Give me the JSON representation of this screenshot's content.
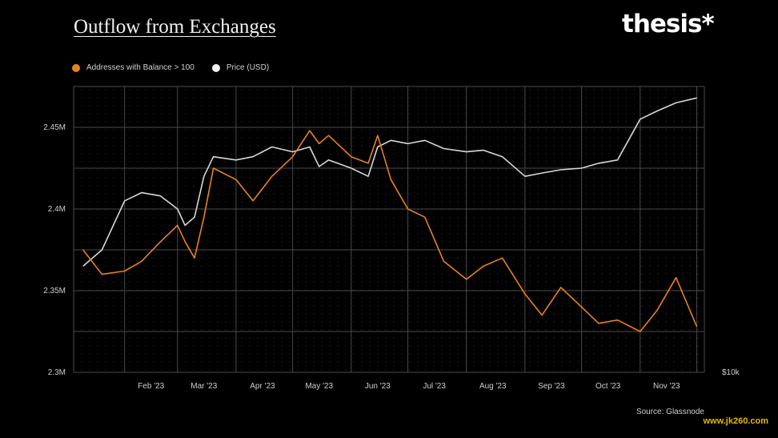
{
  "header": {
    "title": "Outflow from Exchanges",
    "logo_text": "thesis*"
  },
  "legend": [
    {
      "label": "Addresses with Balance > 100",
      "color": "#e8821e"
    },
    {
      "label": "Price (USD)",
      "color": "#e0e0e0"
    }
  ],
  "footer": {
    "source": "Source: Glassnode",
    "watermark": "www.jk260.com"
  },
  "colors": {
    "background": "#000000",
    "grid": "#4a4a4a",
    "addresses": "#e8821e",
    "price": "#d8d8d8"
  },
  "chart_data": {
    "type": "line",
    "title": "Outflow from Exchanges",
    "xlabel": "",
    "ylabel": "",
    "x_ticks": [
      "Feb '23",
      "Mar '23",
      "Apr '23",
      "May '23",
      "Jun '23",
      "Jul '23",
      "Aug '23",
      "Sep '23",
      "Oct '23",
      "Nov '23"
    ],
    "y_ticks": [
      "2.3M",
      "2.35M",
      "2.4M",
      "2.45M"
    ],
    "ylim": [
      2300000,
      2475000
    ],
    "right_axis_label": "$10k",
    "x": [
      "2023-01-10",
      "2023-01-20",
      "2023-02-01",
      "2023-02-10",
      "2023-02-20",
      "2023-03-01",
      "2023-03-05",
      "2023-03-10",
      "2023-03-15",
      "2023-03-20",
      "2023-04-01",
      "2023-04-10",
      "2023-04-20",
      "2023-05-01",
      "2023-05-10",
      "2023-05-15",
      "2023-05-20",
      "2023-06-01",
      "2023-06-10",
      "2023-06-15",
      "2023-06-22",
      "2023-07-01",
      "2023-07-10",
      "2023-07-20",
      "2023-08-01",
      "2023-08-10",
      "2023-08-20",
      "2023-09-01",
      "2023-09-10",
      "2023-09-20",
      "2023-10-01",
      "2023-10-10",
      "2023-10-20",
      "2023-11-01",
      "2023-11-10",
      "2023-11-20",
      "2023-12-01"
    ],
    "series": [
      {
        "name": "Addresses with Balance > 100",
        "color": "#e8821e",
        "values": [
          2375000,
          2360000,
          2362000,
          2368000,
          2380000,
          2390000,
          2380000,
          2370000,
          2395000,
          2425000,
          2418000,
          2405000,
          2420000,
          2432000,
          2448000,
          2440000,
          2445000,
          2432000,
          2428000,
          2445000,
          2418000,
          2400000,
          2395000,
          2368000,
          2357000,
          2365000,
          2370000,
          2348000,
          2335000,
          2352000,
          2340000,
          2330000,
          2332000,
          2325000,
          2338000,
          2358000,
          2328000
        ]
      },
      {
        "name": "Price (USD)",
        "color": "#d8d8d8",
        "values": [
          2365000,
          2375000,
          2405000,
          2410000,
          2408000,
          2400000,
          2390000,
          2395000,
          2420000,
          2432000,
          2430000,
          2432000,
          2438000,
          2435000,
          2438000,
          2426000,
          2430000,
          2425000,
          2420000,
          2438000,
          2442000,
          2440000,
          2442000,
          2437000,
          2435000,
          2436000,
          2432000,
          2420000,
          2422000,
          2424000,
          2425000,
          2428000,
          2430000,
          2455000,
          2460000,
          2465000,
          2468000
        ]
      }
    ]
  }
}
